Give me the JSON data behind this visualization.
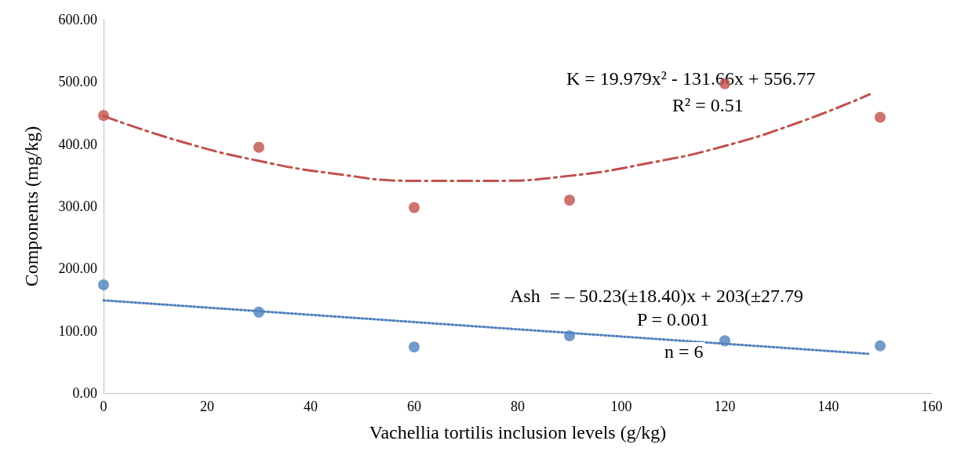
{
  "chart_data": {
    "type": "scatter",
    "xlabel": "Vachellia tortilis inclusion levels (g/kg)",
    "ylabel": "Components (mg/kg)",
    "xlim": [
      0,
      160
    ],
    "xticks": [
      0,
      20,
      40,
      60,
      80,
      100,
      120,
      140,
      160
    ],
    "ylim": [
      0,
      600
    ],
    "yticks": [
      {
        "value": 0,
        "label": "0.00"
      },
      {
        "value": 100,
        "label": "100.00"
      },
      {
        "value": 200,
        "label": "200.00"
      },
      {
        "value": 300,
        "label": "300.00"
      },
      {
        "value": 400,
        "label": "400.00"
      },
      {
        "value": 500,
        "label": "500.00"
      },
      {
        "value": 600,
        "label": "600.00"
      }
    ],
    "grid": false,
    "series": [
      {
        "marker": "circle",
        "color": "#c0504d",
        "x": [
          0,
          30,
          60,
          90,
          120,
          150
        ],
        "values": [
          446,
          395,
          298,
          310,
          497,
          443
        ]
      },
      {
        "marker": "circle",
        "color": "#4f81bd",
        "x": [
          0,
          30,
          60,
          90,
          120,
          150
        ],
        "values": [
          174,
          130,
          74,
          92,
          84,
          76
        ]
      },
      {
        "type": "line",
        "marker": "none",
        "color": "#c0504d",
        "line_style": "dashed",
        "x": [
          0,
          15,
          30,
          45,
          60,
          75,
          90,
          105,
          120,
          135,
          148
        ],
        "values": [
          445,
          404,
          373,
          352,
          341,
          341,
          349,
          369,
          397,
          437,
          480
        ]
      },
      {
        "type": "line",
        "marker": "none",
        "color": "#4f81bd",
        "line_style": "dotted",
        "x": [
          0,
          148
        ],
        "values": [
          149,
          63
        ]
      }
    ],
    "annotations": [
      "K = 19.979x² - 131.66x + 556.77",
      "R² = 0.51",
      "Ash  = – 50.23(±18.40)x + 203(±27.79",
      "P = 0.001",
      "n = 6"
    ]
  }
}
